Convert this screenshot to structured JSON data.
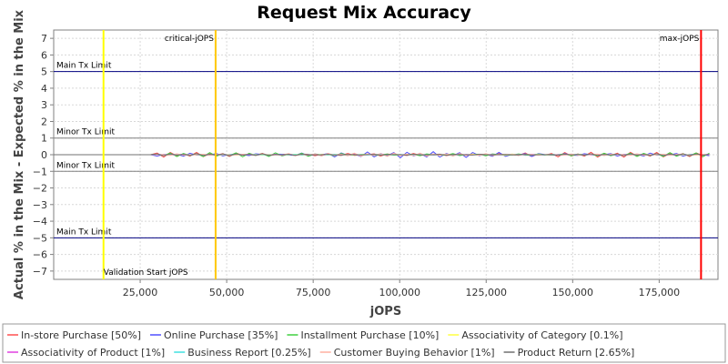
{
  "chart_data": {
    "type": "line",
    "title": "Request Mix Accuracy",
    "xlabel": "jOPS",
    "ylabel": "Actual % in the Mix - Expected % in the Mix",
    "xlim": [
      0,
      192000
    ],
    "ylim": [
      -7.5,
      7.5
    ],
    "grid": true,
    "legend_position": "bottom",
    "x_ticks": [
      {
        "value": 25000,
        "label": "25,000"
      },
      {
        "value": 50000,
        "label": "50,000"
      },
      {
        "value": 75000,
        "label": "75,000"
      },
      {
        "value": 100000,
        "label": "100,000"
      },
      {
        "value": 125000,
        "label": "125,000"
      },
      {
        "value": 150000,
        "label": "150,000"
      },
      {
        "value": 175000,
        "label": "175,000"
      }
    ],
    "y_ticks": [
      {
        "value": 7,
        "label": "7"
      },
      {
        "value": 6,
        "label": "6"
      },
      {
        "value": 5,
        "label": "5"
      },
      {
        "value": 4,
        "label": "4"
      },
      {
        "value": 3,
        "label": "3"
      },
      {
        "value": 2,
        "label": "2"
      },
      {
        "value": 1,
        "label": "1"
      },
      {
        "value": 0,
        "label": "0"
      },
      {
        "value": -1,
        "label": "−1"
      },
      {
        "value": -2,
        "label": "−2"
      },
      {
        "value": -3,
        "label": "−3"
      },
      {
        "value": -4,
        "label": "−4"
      },
      {
        "value": -5,
        "label": "−5"
      },
      {
        "value": -6,
        "label": "−6"
      },
      {
        "value": -7,
        "label": "−7"
      }
    ],
    "horizontal_lines": [
      {
        "y": 5,
        "label": "Main Tx Limit",
        "color": "#000080",
        "label_side": "above"
      },
      {
        "y": 1,
        "label": "Minor Tx Limit",
        "color": "#808080",
        "label_side": "above"
      },
      {
        "y": -1,
        "label": "Minor Tx Limit",
        "color": "#808080",
        "label_side": "above"
      },
      {
        "y": -5,
        "label": "Main Tx Limit",
        "color": "#000080",
        "label_side": "above"
      }
    ],
    "vertical_lines": [
      {
        "x": 14400,
        "label": "Validation Start jOPS",
        "color": "#ffff00",
        "label_pos": "bottom"
      },
      {
        "x": 46800,
        "label": "critical-jOPS",
        "color": "#ffc800",
        "label_pos": "top"
      },
      {
        "x": 187100,
        "label": "max-jOPS",
        "color": "#ff0000",
        "label_pos": "top"
      }
    ],
    "x_start": 0,
    "x_flat_end": 28000,
    "x_end": 190000,
    "x_step": 1900,
    "series": [
      {
        "name": "In-store Purchase [50%]",
        "color": "#ff5050",
        "amp": 0.12
      },
      {
        "name": "Online Purchase [35%]",
        "color": "#5050ff",
        "amp": 0.14
      },
      {
        "name": "Installment Purchase [10%]",
        "color": "#40d040",
        "amp": 0.1
      },
      {
        "name": "Associativity of Category [0.1%]",
        "color": "#ffff40",
        "amp": 0.03
      },
      {
        "name": "Associativity of Product [1%]",
        "color": "#e040e0",
        "amp": 0.03
      },
      {
        "name": "Business Report [0.25%]",
        "color": "#40e0e0",
        "amp": 0.02
      },
      {
        "name": "Customer Buying Behavior [1%]",
        "color": "#ffb0a0",
        "amp": 0.08
      },
      {
        "name": "Product Return [2.65%]",
        "color": "#707070",
        "amp": 0.05
      }
    ]
  }
}
